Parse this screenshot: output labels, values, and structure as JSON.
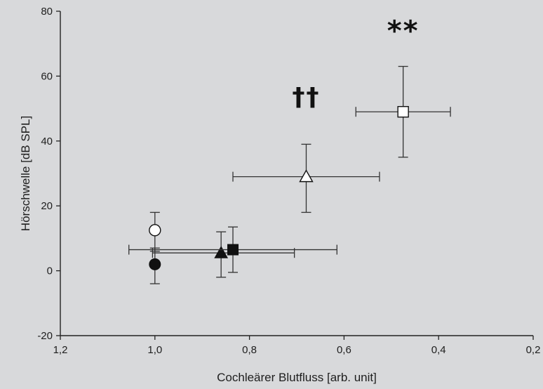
{
  "chart_data": {
    "type": "scatter",
    "title": "",
    "xlabel": "Cochleärer Blutfluss [arb. unit]",
    "ylabel": "Hörschwelle [dB SPL]",
    "xlim": [
      1.2,
      0.2
    ],
    "ylim": [
      -20,
      80
    ],
    "x_reversed": true,
    "x_ticks": [
      1.2,
      1.0,
      0.8,
      0.6,
      0.4,
      0.2
    ],
    "x_tick_labels": [
      "1,2",
      "1,0",
      "0,8",
      "0,6",
      "0,4",
      "0,2"
    ],
    "y_ticks": [
      -20,
      0,
      20,
      40,
      60,
      80
    ],
    "y_tick_labels": [
      "-20",
      "0",
      "20",
      "40",
      "60",
      "80"
    ],
    "grid": false,
    "points": [
      {
        "marker": "circle-open",
        "x": 1.0,
        "y": 12.5,
        "x_err": [
          0,
          0
        ],
        "y_err": [
          6.5,
          5.5
        ]
      },
      {
        "marker": "circle-filled",
        "x": 1.0,
        "y": 2.0,
        "x_err": [
          0,
          0
        ],
        "y_err": [
          6.0,
          5.0
        ]
      },
      {
        "marker": "triangle-filled",
        "x": 0.86,
        "y": 5.5,
        "x_err": [
          0.145,
          0.155
        ],
        "y_err": [
          7.5,
          6.5
        ]
      },
      {
        "marker": "square-filled",
        "x": 0.835,
        "y": 6.5,
        "x_err": [
          0.22,
          0.22
        ],
        "y_err": [
          7.0,
          7.0
        ]
      },
      {
        "marker": "triangle-open",
        "x": 0.68,
        "y": 29.0,
        "x_err": [
          0.155,
          0.155
        ],
        "y_err": [
          11.0,
          10.0
        ]
      },
      {
        "marker": "square-open",
        "x": 0.475,
        "y": 49.0,
        "x_err": [
          0.1,
          0.1
        ],
        "y_err": [
          14.0,
          14.0
        ]
      }
    ],
    "annotations": [
      {
        "text": "††",
        "x": 0.68,
        "y": 51
      },
      {
        "text": "**",
        "x": 0.475,
        "y": 71
      }
    ]
  }
}
